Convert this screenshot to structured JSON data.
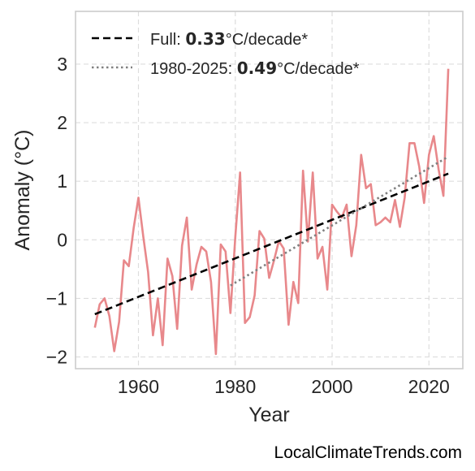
{
  "chart_data": {
    "type": "line",
    "xlabel": "Year",
    "ylabel": "Anomaly (°C)",
    "xlim": [
      1947,
      2027
    ],
    "ylim": [
      -2.2,
      3.9
    ],
    "xticks": [
      1960,
      1980,
      2000,
      2020
    ],
    "yticks": [
      -2,
      -1,
      0,
      1,
      2,
      3
    ],
    "ytick_labels": [
      "−2",
      "−1",
      "0",
      "1",
      "2",
      "3"
    ],
    "grid": true,
    "legend_position": "top-left",
    "series": [
      {
        "kind": "observed",
        "color": "#e8888b",
        "x": [
          1951,
          1952,
          1953,
          1954,
          1955,
          1956,
          1957,
          1958,
          1959,
          1960,
          1961,
          1962,
          1963,
          1964,
          1965,
          1966,
          1967,
          1968,
          1969,
          1970,
          1971,
          1972,
          1973,
          1974,
          1975,
          1976,
          1977,
          1978,
          1979,
          1980,
          1981,
          1982,
          1983,
          1984,
          1985,
          1986,
          1987,
          1988,
          1989,
          1990,
          1991,
          1992,
          1993,
          1994,
          1995,
          1996,
          1997,
          1998,
          1999,
          2000,
          2001,
          2002,
          2003,
          2004,
          2005,
          2006,
          2007,
          2008,
          2009,
          2010,
          2011,
          2012,
          2013,
          2014,
          2015,
          2016,
          2017,
          2018,
          2019,
          2020,
          2021,
          2022,
          2023,
          2024
        ],
        "values": [
          -1.5,
          -1.1,
          -1.0,
          -1.3,
          -1.9,
          -1.4,
          -0.35,
          -0.45,
          0.2,
          0.72,
          0.05,
          -0.55,
          -1.63,
          -1.0,
          -1.8,
          -0.32,
          -0.62,
          -1.52,
          -0.1,
          0.38,
          -0.85,
          -0.42,
          -0.12,
          -0.2,
          -0.72,
          -1.95,
          -0.08,
          -0.2,
          -1.25,
          0.05,
          1.15,
          -1.42,
          -1.32,
          -0.95,
          0.15,
          0.02,
          -0.65,
          -0.35,
          -0.02,
          -0.15,
          -1.45,
          -0.72,
          -1.08,
          1.18,
          -0.03,
          1.15,
          -0.32,
          -0.12,
          -0.85,
          0.6,
          0.48,
          0.38,
          0.6,
          -0.28,
          0.25,
          1.45,
          0.88,
          0.95,
          0.25,
          0.3,
          0.38,
          0.3,
          0.68,
          0.22,
          0.72,
          1.65,
          1.65,
          1.25,
          0.63,
          1.45,
          1.77,
          1.2,
          0.75,
          2.92
        ]
      },
      {
        "kind": "trend-full",
        "label_prefix": "Full: ",
        "label_value": "0.33",
        "label_suffix": "°C/decade*",
        "color": "#000000",
        "x": [
          1951,
          2024
        ],
        "values": [
          -1.27,
          1.13
        ]
      },
      {
        "kind": "trend-recent",
        "label_prefix": "1980-2025: ",
        "label_value": "0.49",
        "label_suffix": "°C/decade*",
        "color": "#808080",
        "x": [
          1979,
          2024
        ],
        "values": [
          -0.78,
          1.42
        ]
      }
    ]
  },
  "watermark": "LocalClimateTrends.com"
}
